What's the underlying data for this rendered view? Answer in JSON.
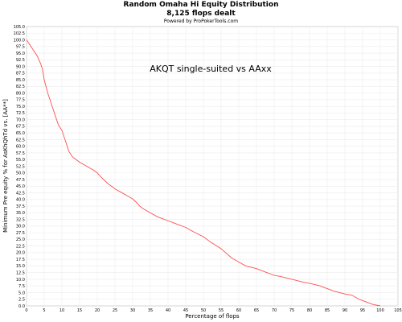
{
  "chart_data": {
    "type": "line",
    "title": "Random Omaha Hi Equity Distribution",
    "subtitle": "8,125 flops dealt",
    "credit": "Powered by ProPokerTools.com",
    "annotation": "AKQT single-suited vs AAxx",
    "xlabel": "Percentage of flops",
    "ylabel": "Minimum Pre equity % for AsKhQhTd vs. [AA**]",
    "xlim": [
      0,
      105
    ],
    "ylim": [
      0,
      105
    ],
    "x_ticks": [
      "0",
      "5",
      "10",
      "15",
      "20",
      "25",
      "30",
      "35",
      "40",
      "45",
      "50",
      "55",
      "60",
      "65",
      "70",
      "75",
      "80",
      "85",
      "90",
      "95",
      "100",
      "105"
    ],
    "y_ticks": [
      "0.0",
      "2.5",
      "5.0",
      "7.5",
      "10.0",
      "12.5",
      "15.0",
      "17.5",
      "20.0",
      "22.5",
      "25.0",
      "27.5",
      "30.0",
      "32.5",
      "35.0",
      "37.5",
      "40.0",
      "42.5",
      "45.0",
      "47.5",
      "50.0",
      "52.5",
      "55.0",
      "57.5",
      "60.0",
      "62.5",
      "65.0",
      "67.5",
      "70.0",
      "72.5",
      "75.0",
      "77.5",
      "80.0",
      "82.5",
      "85.0",
      "87.5",
      "90.0",
      "92.5",
      "95.0",
      "97.5",
      "100.0",
      "102.5",
      "105.0"
    ],
    "grid": true,
    "series": [
      {
        "color": "#ff4d4d",
        "x": [
          0,
          1,
          2,
          3,
          4,
          4.5,
          5,
          6,
          7,
          8,
          9,
          10,
          11,
          12,
          13,
          14,
          15,
          17,
          19,
          20,
          21,
          23,
          25,
          27,
          29,
          30,
          31,
          32,
          33,
          35,
          37,
          40,
          42,
          44,
          45,
          47,
          50,
          52,
          55,
          58,
          60,
          62,
          65,
          67,
          70,
          72,
          75,
          78,
          80,
          83,
          85,
          87,
          90,
          92,
          94,
          96,
          98,
          100
        ],
        "y": [
          100,
          98,
          96,
          94,
          91,
          89,
          85,
          80,
          76,
          72,
          68,
          66,
          62,
          58,
          56,
          55,
          54,
          52.5,
          51,
          50,
          48.5,
          46,
          44,
          42.5,
          41,
          40.2,
          39,
          37.5,
          36.5,
          35,
          33.5,
          32,
          31,
          30,
          29.5,
          28,
          26,
          24,
          21.5,
          18,
          16.5,
          15,
          14,
          13,
          11.5,
          11,
          10,
          9,
          8.5,
          7.5,
          6.5,
          5.5,
          4.5,
          4,
          2.5,
          1.5,
          0.5,
          0
        ]
      }
    ]
  }
}
